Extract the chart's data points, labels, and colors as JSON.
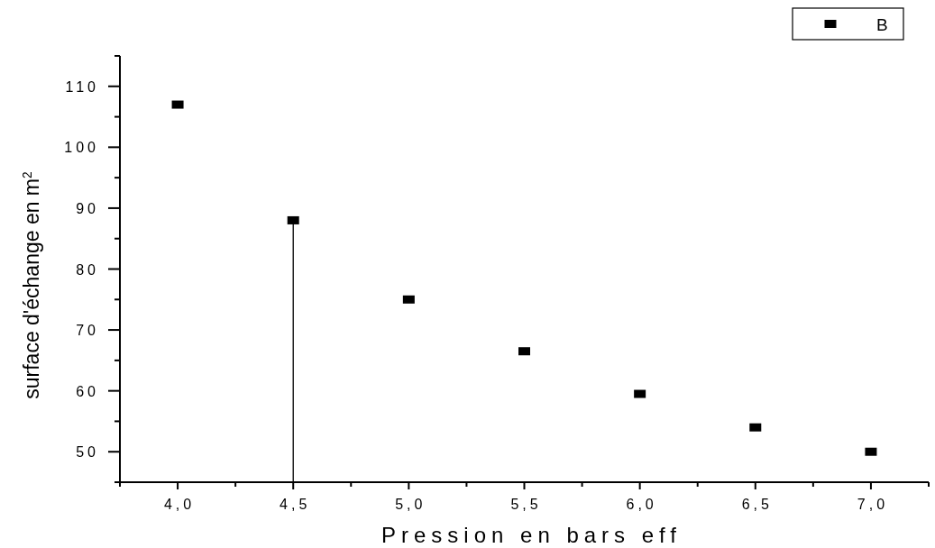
{
  "chart_data": {
    "type": "scatter",
    "xlabel": "Pression en bars eff",
    "ylabel": "surface d'échange en m$^{2}$",
    "xlim": [
      3.75,
      7.25
    ],
    "ylim": [
      45,
      115
    ],
    "xticks": [
      {
        "value": 3.75,
        "label": null
      },
      {
        "value": 4,
        "label": "4,0"
      },
      {
        "value": 4.25,
        "label": null
      },
      {
        "value": 4.5,
        "label": "4,5"
      },
      {
        "value": 4.75,
        "label": null
      },
      {
        "value": 5,
        "label": "5,0"
      },
      {
        "value": 5.25,
        "label": null
      },
      {
        "value": 5.5,
        "label": "5,5"
      },
      {
        "value": 5.75,
        "label": null
      },
      {
        "value": 6,
        "label": "6,0"
      },
      {
        "value": 6.25,
        "label": null
      },
      {
        "value": 6.5,
        "label": "6,5"
      },
      {
        "value": 6.75,
        "label": null
      },
      {
        "value": 7,
        "label": "7,0"
      },
      {
        "value": 7.25,
        "label": null
      }
    ],
    "yticks": [
      {
        "value": 45,
        "label": null
      },
      50,
      {
        "value": 55,
        "label": null
      },
      60,
      {
        "value": 65,
        "label": null
      },
      70,
      {
        "value": 75,
        "label": null
      },
      80,
      {
        "value": 85,
        "label": null
      },
      90,
      {
        "value": 95,
        "label": null
      },
      100,
      {
        "value": 105,
        "label": null
      },
      110,
      {
        "value": 115,
        "label": null
      }
    ],
    "marker": "square",
    "legend": "top right",
    "series": [
      {
        "name": "B",
        "color": "#000000",
        "x": [
          4,
          4.5,
          5,
          5.5,
          6,
          6.5,
          7
        ],
        "values": [
          107,
          88,
          75,
          66.5,
          59.5,
          54,
          50
        ]
      },
      {
        "type": "line",
        "color": "#000000",
        "marker": "none",
        "x": [
          4.5,
          4.5
        ],
        "values": [
          88,
          45
        ]
      }
    ]
  }
}
